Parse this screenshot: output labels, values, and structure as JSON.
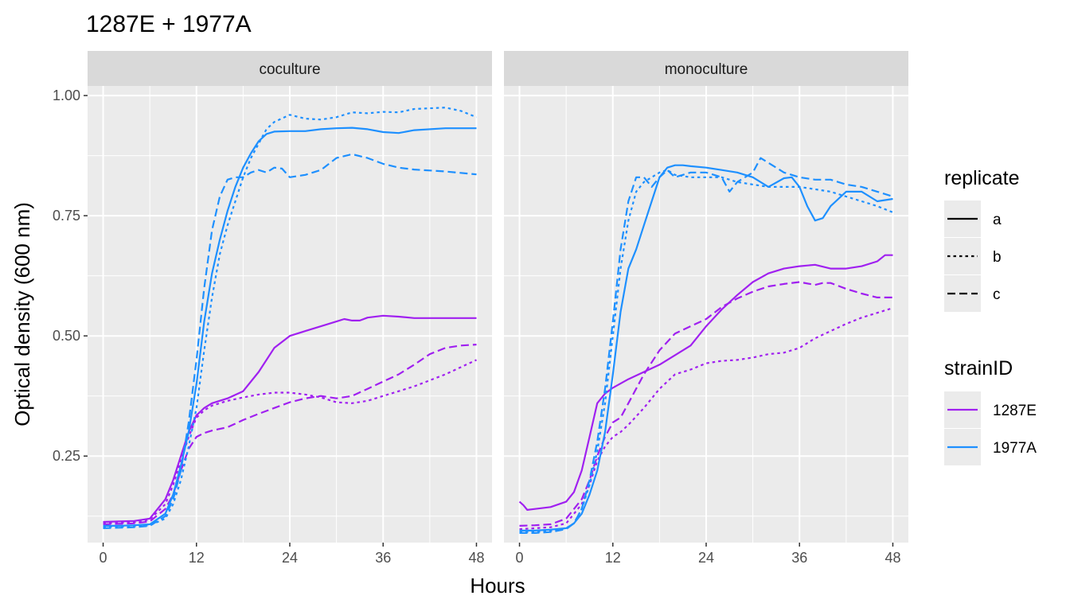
{
  "chart_data": {
    "type": "line",
    "title": "1287E + 1977A",
    "xlabel": "Hours",
    "ylabel": "Optical density (600 nm)",
    "xlim": [
      -2,
      50
    ],
    "ylim": [
      0.07,
      1.02
    ],
    "x_ticks": [
      0,
      12,
      24,
      36,
      48
    ],
    "y_ticks": [
      0.25,
      0.5,
      0.75,
      1.0
    ],
    "y_tick_labels": [
      "0.25",
      "0.50",
      "0.75",
      "1.00"
    ],
    "grid": true,
    "legend_position": "right",
    "colors": {
      "1287E": "#a020f0",
      "1977A": "#1e90ff"
    },
    "legends": [
      {
        "title": "replicate",
        "kind": "linetype",
        "entries": [
          {
            "label": "a",
            "dash": "solid"
          },
          {
            "label": "b",
            "dash": "dotted"
          },
          {
            "label": "c",
            "dash": "dashed"
          }
        ]
      },
      {
        "title": "strainID",
        "kind": "color",
        "entries": [
          {
            "label": "1287E",
            "color": "#a020f0"
          },
          {
            "label": "1977A",
            "color": "#1e90ff"
          }
        ]
      }
    ],
    "panels": [
      {
        "label": "coculture",
        "series": [
          {
            "strain": "1287E",
            "replicate": "a",
            "x": [
              0,
              2,
              4,
              6,
              8,
              9,
              10,
              11,
              12,
              13,
              14,
              16,
              18,
              20,
              22,
              24,
              26,
              28,
              30,
              31,
              32,
              33,
              34,
              36,
              38,
              40,
              44,
              48
            ],
            "y": [
              0.113,
              0.114,
              0.115,
              0.12,
              0.16,
              0.2,
              0.25,
              0.3,
              0.335,
              0.35,
              0.36,
              0.37,
              0.385,
              0.425,
              0.475,
              0.5,
              0.51,
              0.52,
              0.53,
              0.535,
              0.532,
              0.532,
              0.538,
              0.542,
              0.54,
              0.537,
              0.537,
              0.537
            ]
          },
          {
            "strain": "1287E",
            "replicate": "b",
            "x": [
              0,
              2,
              4,
              6,
              8,
              9,
              10,
              11,
              12,
              13,
              14,
              16,
              18,
              20,
              22,
              24,
              26,
              28,
              30,
              32,
              34,
              36,
              38,
              40,
              44,
              48
            ],
            "y": [
              0.11,
              0.111,
              0.112,
              0.118,
              0.15,
              0.19,
              0.24,
              0.29,
              0.33,
              0.345,
              0.355,
              0.365,
              0.372,
              0.378,
              0.382,
              0.382,
              0.378,
              0.372,
              0.362,
              0.36,
              0.365,
              0.375,
              0.385,
              0.395,
              0.42,
              0.45
            ]
          },
          {
            "strain": "1287E",
            "replicate": "c",
            "x": [
              0,
              2,
              4,
              6,
              8,
              9,
              10,
              11,
              12,
              13,
              14,
              16,
              18,
              20,
              22,
              24,
              26,
              28,
              30,
              32,
              34,
              36,
              38,
              40,
              42,
              44,
              46,
              48
            ],
            "y": [
              0.108,
              0.109,
              0.11,
              0.114,
              0.14,
              0.17,
              0.22,
              0.265,
              0.29,
              0.298,
              0.303,
              0.31,
              0.325,
              0.338,
              0.35,
              0.362,
              0.37,
              0.375,
              0.37,
              0.375,
              0.39,
              0.405,
              0.42,
              0.44,
              0.462,
              0.475,
              0.48,
              0.482
            ]
          },
          {
            "strain": "1977A",
            "replicate": "a",
            "x": [
              0,
              2,
              4,
              6,
              8,
              9,
              10,
              11,
              12,
              13,
              14,
              15,
              16,
              17,
              18,
              19,
              20,
              21,
              22,
              24,
              26,
              28,
              30,
              32,
              34,
              36,
              38,
              40,
              44,
              48
            ],
            "y": [
              0.105,
              0.105,
              0.106,
              0.108,
              0.13,
              0.17,
              0.23,
              0.3,
              0.4,
              0.53,
              0.63,
              0.7,
              0.76,
              0.81,
              0.85,
              0.88,
              0.905,
              0.92,
              0.925,
              0.926,
              0.926,
              0.93,
              0.932,
              0.933,
              0.93,
              0.924,
              0.922,
              0.928,
              0.932,
              0.932
            ]
          },
          {
            "strain": "1977A",
            "replicate": "b",
            "x": [
              0,
              2,
              4,
              6,
              8,
              9,
              10,
              11,
              12,
              13,
              14,
              15,
              16,
              17,
              18,
              19,
              20,
              21,
              22,
              24,
              26,
              28,
              30,
              32,
              34,
              36,
              38,
              40,
              44,
              46,
              48
            ],
            "y": [
              0.103,
              0.103,
              0.104,
              0.106,
              0.12,
              0.15,
              0.2,
              0.27,
              0.35,
              0.47,
              0.58,
              0.67,
              0.73,
              0.78,
              0.83,
              0.87,
              0.9,
              0.93,
              0.945,
              0.96,
              0.952,
              0.95,
              0.955,
              0.965,
              0.963,
              0.966,
              0.965,
              0.972,
              0.975,
              0.968,
              0.955
            ]
          },
          {
            "strain": "1977A",
            "replicate": "c",
            "x": [
              0,
              2,
              4,
              6,
              8,
              9,
              10,
              11,
              12,
              13,
              14,
              15,
              16,
              17,
              18,
              19,
              20,
              21,
              22,
              23,
              24,
              26,
              28,
              30,
              32,
              34,
              36,
              38,
              40,
              44,
              48
            ],
            "y": [
              0.1,
              0.101,
              0.102,
              0.105,
              0.125,
              0.16,
              0.22,
              0.32,
              0.45,
              0.6,
              0.72,
              0.79,
              0.825,
              0.83,
              0.83,
              0.84,
              0.845,
              0.84,
              0.85,
              0.848,
              0.83,
              0.835,
              0.845,
              0.87,
              0.878,
              0.87,
              0.858,
              0.85,
              0.846,
              0.842,
              0.836
            ]
          }
        ]
      },
      {
        "label": "monoculture",
        "series": [
          {
            "strain": "1287E",
            "replicate": "a",
            "x": [
              0,
              0.5,
              1,
              2,
              4,
              6,
              7,
              8,
              9,
              10,
              11,
              12,
              14,
              16,
              18,
              20,
              22,
              24,
              26,
              28,
              30,
              32,
              34,
              36,
              38,
              40,
              42,
              44,
              46,
              47,
              48
            ],
            "y": [
              0.155,
              0.148,
              0.138,
              0.14,
              0.144,
              0.155,
              0.175,
              0.22,
              0.29,
              0.36,
              0.38,
              0.392,
              0.41,
              0.425,
              0.44,
              0.46,
              0.48,
              0.52,
              0.555,
              0.585,
              0.612,
              0.63,
              0.64,
              0.645,
              0.648,
              0.64,
              0.64,
              0.645,
              0.655,
              0.668,
              0.668
            ]
          },
          {
            "strain": "1287E",
            "replicate": "b",
            "x": [
              0,
              2,
              4,
              6,
              8,
              9,
              10,
              11,
              12,
              13,
              14,
              16,
              18,
              20,
              22,
              24,
              26,
              28,
              30,
              32,
              34,
              36,
              38,
              40,
              42,
              44,
              46,
              48
            ],
            "y": [
              0.098,
              0.1,
              0.102,
              0.11,
              0.15,
              0.19,
              0.24,
              0.27,
              0.29,
              0.3,
              0.315,
              0.35,
              0.39,
              0.42,
              0.43,
              0.443,
              0.448,
              0.45,
              0.455,
              0.462,
              0.465,
              0.475,
              0.495,
              0.51,
              0.525,
              0.538,
              0.548,
              0.558
            ]
          },
          {
            "strain": "1287E",
            "replicate": "c",
            "x": [
              0,
              2,
              4,
              6,
              8,
              9,
              10,
              11,
              12,
              13,
              14,
              16,
              18,
              20,
              22,
              24,
              26,
              28,
              30,
              32,
              34,
              36,
              38,
              39,
              40,
              42,
              44,
              46,
              48
            ],
            "y": [
              0.105,
              0.106,
              0.108,
              0.12,
              0.16,
              0.2,
              0.25,
              0.29,
              0.32,
              0.33,
              0.36,
              0.42,
              0.47,
              0.505,
              0.52,
              0.535,
              0.56,
              0.578,
              0.592,
              0.603,
              0.608,
              0.612,
              0.606,
              0.61,
              0.61,
              0.598,
              0.588,
              0.58,
              0.58
            ]
          },
          {
            "strain": "1977A",
            "replicate": "a",
            "x": [
              0,
              2,
              4,
              6,
              7,
              8,
              9,
              10,
              11,
              12,
              13,
              14,
              15,
              16,
              17,
              18,
              19,
              20,
              21,
              22,
              24,
              26,
              28,
              30,
              32,
              34,
              35,
              36,
              37,
              38,
              39,
              40,
              42,
              44,
              46,
              48
            ],
            "y": [
              0.095,
              0.095,
              0.097,
              0.1,
              0.11,
              0.13,
              0.17,
              0.22,
              0.3,
              0.42,
              0.55,
              0.64,
              0.68,
              0.73,
              0.78,
              0.83,
              0.85,
              0.855,
              0.855,
              0.853,
              0.85,
              0.845,
              0.84,
              0.83,
              0.81,
              0.828,
              0.83,
              0.81,
              0.77,
              0.74,
              0.745,
              0.77,
              0.8,
              0.8,
              0.78,
              0.785
            ]
          },
          {
            "strain": "1977A",
            "replicate": "b",
            "x": [
              0,
              2,
              4,
              6,
              7,
              8,
              9,
              10,
              11,
              12,
              13,
              14,
              15,
              16,
              17,
              18,
              19,
              20,
              22,
              24,
              26,
              28,
              30,
              32,
              34,
              36,
              38,
              40,
              42,
              44,
              46,
              48
            ],
            "y": [
              0.092,
              0.092,
              0.094,
              0.1,
              0.11,
              0.14,
              0.19,
              0.26,
              0.36,
              0.5,
              0.64,
              0.74,
              0.8,
              0.82,
              0.83,
              0.84,
              0.845,
              0.835,
              0.83,
              0.83,
              0.83,
              0.82,
              0.815,
              0.81,
              0.81,
              0.81,
              0.805,
              0.8,
              0.79,
              0.78,
              0.77,
              0.757
            ]
          },
          {
            "strain": "1977A",
            "replicate": "c",
            "x": [
              0,
              2,
              4,
              6,
              7,
              8,
              9,
              10,
              11,
              12,
              13,
              14,
              15,
              16,
              17,
              18,
              19,
              20,
              22,
              24,
              26,
              27,
              28,
              30,
              31,
              32,
              34,
              36,
              38,
              40,
              42,
              44,
              46,
              48
            ],
            "y": [
              0.09,
              0.09,
              0.092,
              0.098,
              0.11,
              0.14,
              0.2,
              0.28,
              0.39,
              0.53,
              0.68,
              0.78,
              0.83,
              0.83,
              0.81,
              0.83,
              0.845,
              0.83,
              0.84,
              0.84,
              0.83,
              0.8,
              0.82,
              0.84,
              0.87,
              0.86,
              0.84,
              0.83,
              0.825,
              0.825,
              0.815,
              0.81,
              0.8,
              0.79
            ]
          }
        ]
      }
    ]
  }
}
